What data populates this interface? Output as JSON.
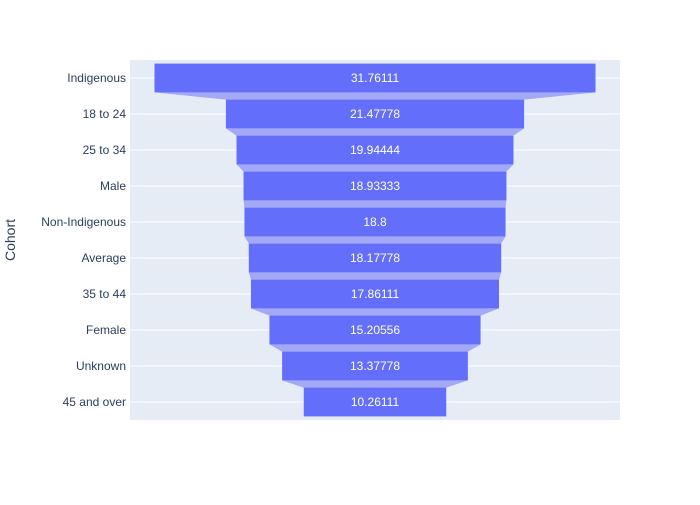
{
  "chart_data": {
    "type": "funnel",
    "title": "",
    "xlabel": "",
    "ylabel": "Cohort",
    "categories": [
      "Indigenous",
      "18 to 24",
      "25 to 34",
      "Male",
      "Non-Indigenous",
      "Average",
      "35 to 44",
      "Female",
      "Unknown",
      "45 and over"
    ],
    "values": [
      31.76111,
      21.47778,
      19.94444,
      18.93333,
      18.8,
      18.17778,
      17.86111,
      15.20556,
      13.37778,
      10.26111
    ],
    "value_labels": [
      "31.76111",
      "21.47778",
      "19.94444",
      "18.93333",
      "18.8",
      "18.17778",
      "17.86111",
      "15.20556",
      "13.37778",
      "10.26111"
    ],
    "grid": true,
    "colors": {
      "bar": "#636efa",
      "connector": "#a3a8f7",
      "plot_background": "#e5ecf6",
      "gridline": "#ffffff",
      "text": "#2a3f5f"
    }
  }
}
